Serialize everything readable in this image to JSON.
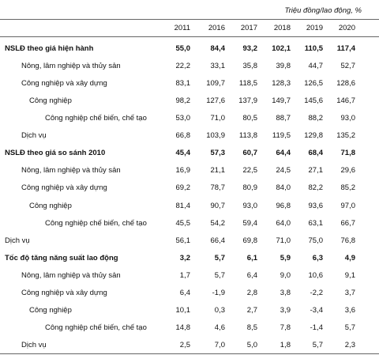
{
  "unit_note": "Triệu đồng/lao động, %",
  "table": {
    "columns": [
      "2011",
      "2016",
      "2017",
      "2018",
      "2019",
      "2020"
    ],
    "rows": [
      {
        "label": "NSLĐ theo giá hiện hành",
        "level": 0,
        "bold": true,
        "values": [
          "55,0",
          "84,4",
          "93,2",
          "102,1",
          "110,5",
          "117,4"
        ]
      },
      {
        "label": "Nông, lâm nghiệp và thủy sản",
        "level": 1,
        "bold": false,
        "values": [
          "22,2",
          "33,1",
          "35,8",
          "39,8",
          "44,7",
          "52,7"
        ]
      },
      {
        "label": "Công nghiệp và xây dựng",
        "level": 1,
        "bold": false,
        "values": [
          "83,1",
          "109,7",
          "118,5",
          "128,3",
          "126,5",
          "128,6"
        ]
      },
      {
        "label": "Công nghiệp",
        "level": 2,
        "bold": false,
        "values": [
          "98,2",
          "127,6",
          "137,9",
          "149,7",
          "145,6",
          "146,7"
        ]
      },
      {
        "label": "Công nghiệp chế biến, chế tạo",
        "level": 3,
        "bold": false,
        "values": [
          "53,0",
          "71,0",
          "80,5",
          "88,7",
          "88,2",
          "93,0"
        ]
      },
      {
        "label": "Dịch vụ",
        "level": 1,
        "bold": false,
        "values": [
          "66,8",
          "103,9",
          "113,8",
          "119,5",
          "129,8",
          "135,2"
        ]
      },
      {
        "label": "NSLĐ theo giá so sánh 2010",
        "level": 0,
        "bold": true,
        "values": [
          "45,4",
          "57,3",
          "60,7",
          "64,4",
          "68,4",
          "71,8"
        ]
      },
      {
        "label": "Nông, lâm nghiệp và thủy sản",
        "level": 1,
        "bold": false,
        "values": [
          "16,9",
          "21,1",
          "22,5",
          "24,5",
          "27,1",
          "29,6"
        ]
      },
      {
        "label": "Công nghiệp và xây dựng",
        "level": 1,
        "bold": false,
        "values": [
          "69,2",
          "78,7",
          "80,9",
          "84,0",
          "82,2",
          "85,2"
        ]
      },
      {
        "label": "Công nghiệp",
        "level": 2,
        "bold": false,
        "values": [
          "81,4",
          "90,7",
          "93,0",
          "96,8",
          "93,6",
          "97,0"
        ]
      },
      {
        "label": "Công nghiệp chế biến, chế tạo",
        "level": 3,
        "bold": false,
        "values": [
          "45,5",
          "54,2",
          "59,4",
          "64,0",
          "63,1",
          "66,7"
        ]
      },
      {
        "label": "Dịch vụ",
        "level": 0,
        "bold": false,
        "values": [
          "56,1",
          "66,4",
          "69,8",
          "71,0",
          "75,0",
          "76,8"
        ]
      },
      {
        "label": "Tốc độ tăng năng suất lao động",
        "level": 0,
        "bold": true,
        "values": [
          "3,2",
          "5,7",
          "6,1",
          "5,9",
          "6,3",
          "4,9"
        ]
      },
      {
        "label": "Nông, lâm nghiệp và thủy sản",
        "level": 1,
        "bold": false,
        "values": [
          "1,7",
          "5,7",
          "6,4",
          "9,0",
          "10,6",
          "9,1"
        ]
      },
      {
        "label": "Công nghiệp và xây dựng",
        "level": 1,
        "bold": false,
        "values": [
          "6,4",
          "-1,9",
          "2,8",
          "3,8",
          "-2,2",
          "3,7"
        ]
      },
      {
        "label": "Công nghiệp",
        "level": 2,
        "bold": false,
        "values": [
          "10,1",
          "0,3",
          "2,7",
          "3,9",
          "-3,4",
          "3,6"
        ]
      },
      {
        "label": "Công nghiệp chế biến, chế tạo",
        "level": 3,
        "bold": false,
        "values": [
          "14,8",
          "4,6",
          "8,5",
          "7,8",
          "-1,4",
          "5,7"
        ]
      },
      {
        "label": "Dịch vụ",
        "level": 1,
        "bold": false,
        "values": [
          "2,5",
          "7,0",
          "5,0",
          "1,8",
          "5,7",
          "2,3"
        ]
      }
    ]
  }
}
